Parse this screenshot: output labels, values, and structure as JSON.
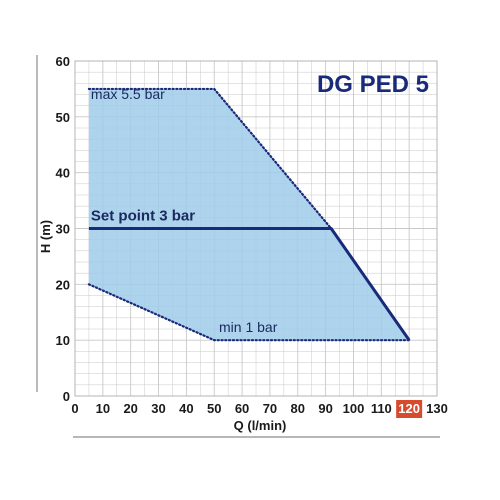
{
  "chart_data": {
    "type": "area",
    "title": "DG PED 5",
    "xlabel": "Q (l/min)",
    "ylabel": "H (m)",
    "xlim": [
      0,
      130
    ],
    "ylim": [
      0,
      60
    ],
    "x_ticks": [
      0,
      10,
      20,
      30,
      40,
      50,
      60,
      70,
      80,
      90,
      100,
      110,
      120,
      130
    ],
    "y_ticks": [
      0,
      10,
      20,
      30,
      40,
      50,
      60
    ],
    "highlighted_x_tick": 120,
    "grid": true,
    "region": {
      "fill": "#9fcbea",
      "points": [
        [
          5,
          55
        ],
        [
          50,
          55
        ],
        [
          92,
          30
        ],
        [
          120,
          10
        ],
        [
          50,
          10
        ],
        [
          5,
          20
        ]
      ]
    },
    "series": [
      {
        "name": "max 5.5 bar",
        "style": "dotted",
        "x": [
          5,
          50,
          92
        ],
        "y": [
          55,
          55,
          30
        ]
      },
      {
        "name": "Set point 3 bar",
        "style": "solid",
        "x": [
          5,
          92,
          120
        ],
        "y": [
          30,
          30,
          10
        ]
      },
      {
        "name": "min 1 bar",
        "style": "dotted",
        "x": [
          5,
          50,
          120
        ],
        "y": [
          20,
          10,
          10
        ]
      }
    ],
    "annotations": [
      {
        "text": "max 5.5 bar",
        "x": 5,
        "y": 53.2,
        "bold": false
      },
      {
        "text": "Set point 3 bar",
        "x": 5,
        "y": 31.4,
        "bold": true
      },
      {
        "text": "min 1 bar",
        "x": 51,
        "y": 11.5,
        "bold": false
      }
    ],
    "colors": {
      "region": "#9fcbea",
      "line": "#1a2a7a",
      "title": "#1a2a7a",
      "highlight": "#d64a2e",
      "grid": "#c8c8c8",
      "axis_frame": "#8c8c8c"
    }
  }
}
